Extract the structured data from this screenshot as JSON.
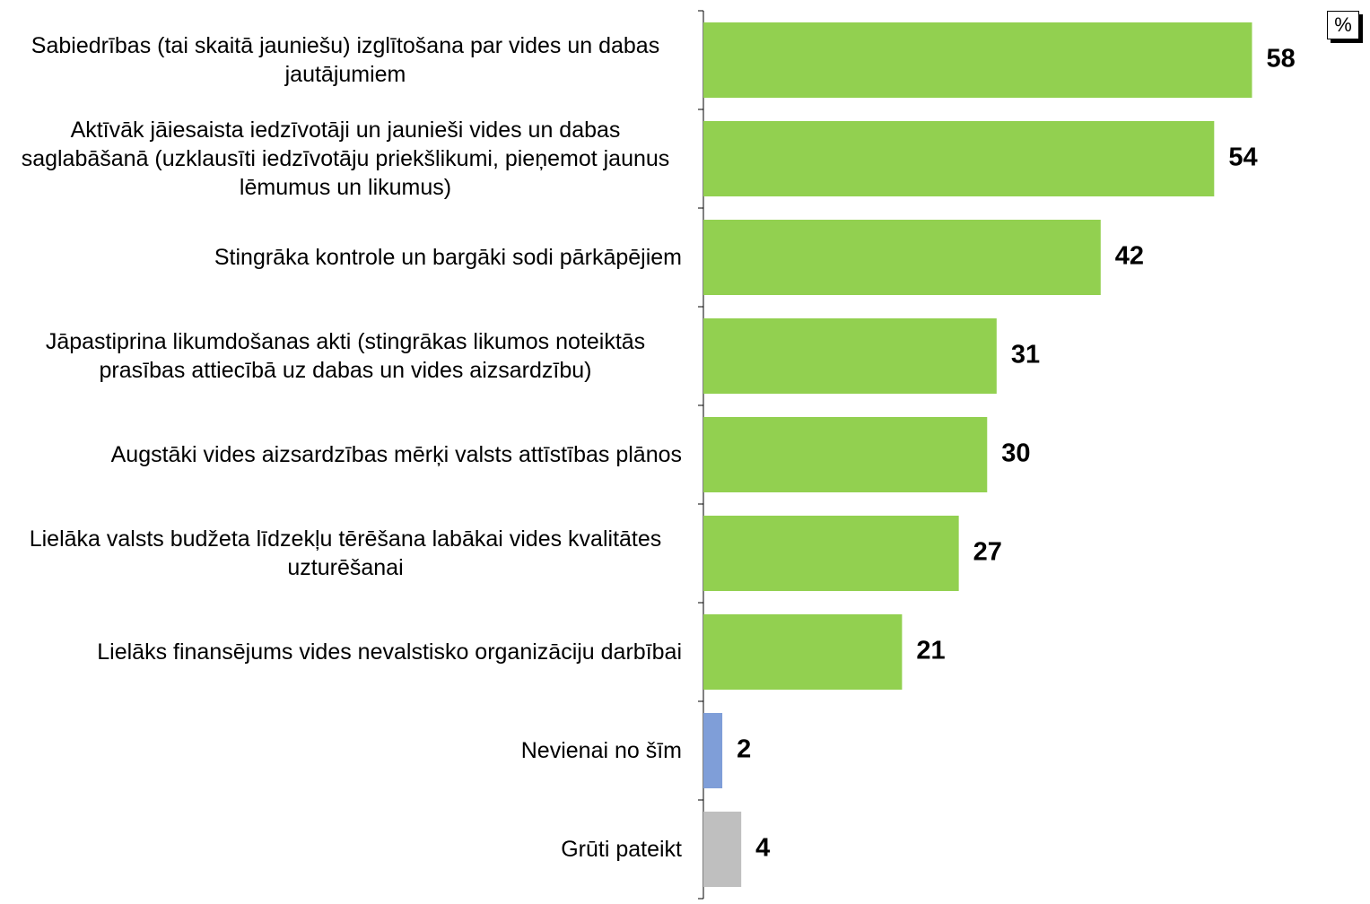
{
  "chart_data": {
    "type": "barh",
    "unit_label": "%",
    "categories": [
      "Sabiedrības (tai skaitā jauniešu) izglītošana par vides un dabas jautājumiem",
      "Aktīvāk jāiesaista iedzīvotāji un jaunieši vides un dabas saglabāšanā (uzklausīti iedzīvotāju priekšlikumi, pieņemot jaunus lēmumus un likumus)",
      "Stingrāka kontrole un bargāki sodi pārkāpējiem",
      "Jāpastiprina likumdošanas akti (stingrākas likumos noteiktās prasības attiecībā uz dabas un vides aizsardzību)",
      "Augstāki vides aizsardzības mērķi valsts attīstības plānos",
      "Lielāka valsts budžeta līdzekļu tērēšana labākai vides kvalitātes uzturēšanai",
      "Lielāks finansējums vides nevalstisko organizāciju darbībai",
      "Nevienai no šīm",
      "Grūti pateikt"
    ],
    "values": [
      58,
      54,
      42,
      31,
      30,
      27,
      21,
      2,
      4
    ],
    "colors": [
      "#92d050",
      "#92d050",
      "#92d050",
      "#92d050",
      "#92d050",
      "#92d050",
      "#92d050",
      "#7f9ed8",
      "#bfbfbf"
    ],
    "xlim": [
      0,
      70
    ]
  }
}
